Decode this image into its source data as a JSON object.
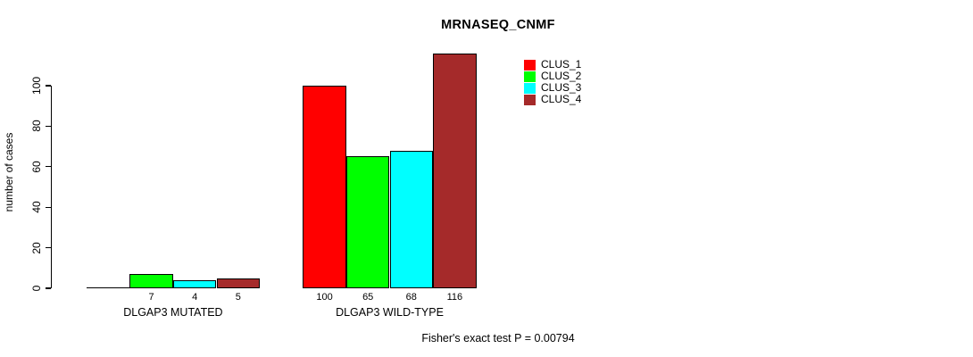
{
  "chart_data": {
    "type": "bar",
    "title": "MRNASEQ_CNMF",
    "xlabel": "",
    "ylabel": "number of cases",
    "categories": [
      "DLGAP3 MUTATED",
      "DLGAP3 WILD-TYPE"
    ],
    "series": [
      {
        "name": "CLUS_1",
        "color": "#FF0000",
        "values": [
          0,
          100
        ]
      },
      {
        "name": "CLUS_2",
        "color": "#00FF00",
        "values": [
          7,
          65
        ]
      },
      {
        "name": "CLUS_3",
        "color": "#00FFFF",
        "values": [
          4,
          68
        ]
      },
      {
        "name": "CLUS_4",
        "color": "#A52A2A",
        "values": [
          5,
          116
        ]
      }
    ],
    "bar_value_labels": [
      [
        "",
        "7",
        "4",
        "5"
      ],
      [
        "100",
        "65",
        "68",
        "116"
      ]
    ],
    "yticks": [
      0,
      20,
      40,
      60,
      80,
      100
    ],
    "ylim": [
      0,
      116
    ],
    "grid": false,
    "legend_position": "top-right",
    "annotation": "Fisher's exact test P = 0.00794"
  }
}
